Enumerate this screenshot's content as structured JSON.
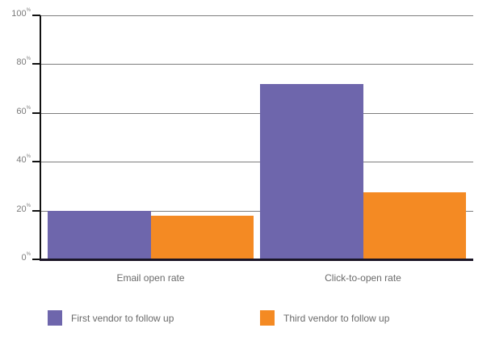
{
  "chart_data": {
    "type": "bar",
    "title": "",
    "xlabel": "",
    "ylabel": "",
    "categories": [
      "Email open rate",
      "Click-to-open rate"
    ],
    "series": [
      {
        "name": "First vendor to follow up",
        "color": "#6E66AC",
        "values": [
          20,
          72
        ]
      },
      {
        "name": "Third vendor to follow up",
        "color": "#F48A23",
        "values": [
          18,
          27.5
        ]
      }
    ],
    "ylim": [
      0,
      100
    ],
    "yticks": [
      0,
      20,
      40,
      60,
      80,
      100
    ],
    "ytick_labels": [
      "0",
      "20",
      "40",
      "60",
      "80",
      "100"
    ],
    "ytick_suffix": "%",
    "grid": true,
    "legend_position": "bottom"
  }
}
